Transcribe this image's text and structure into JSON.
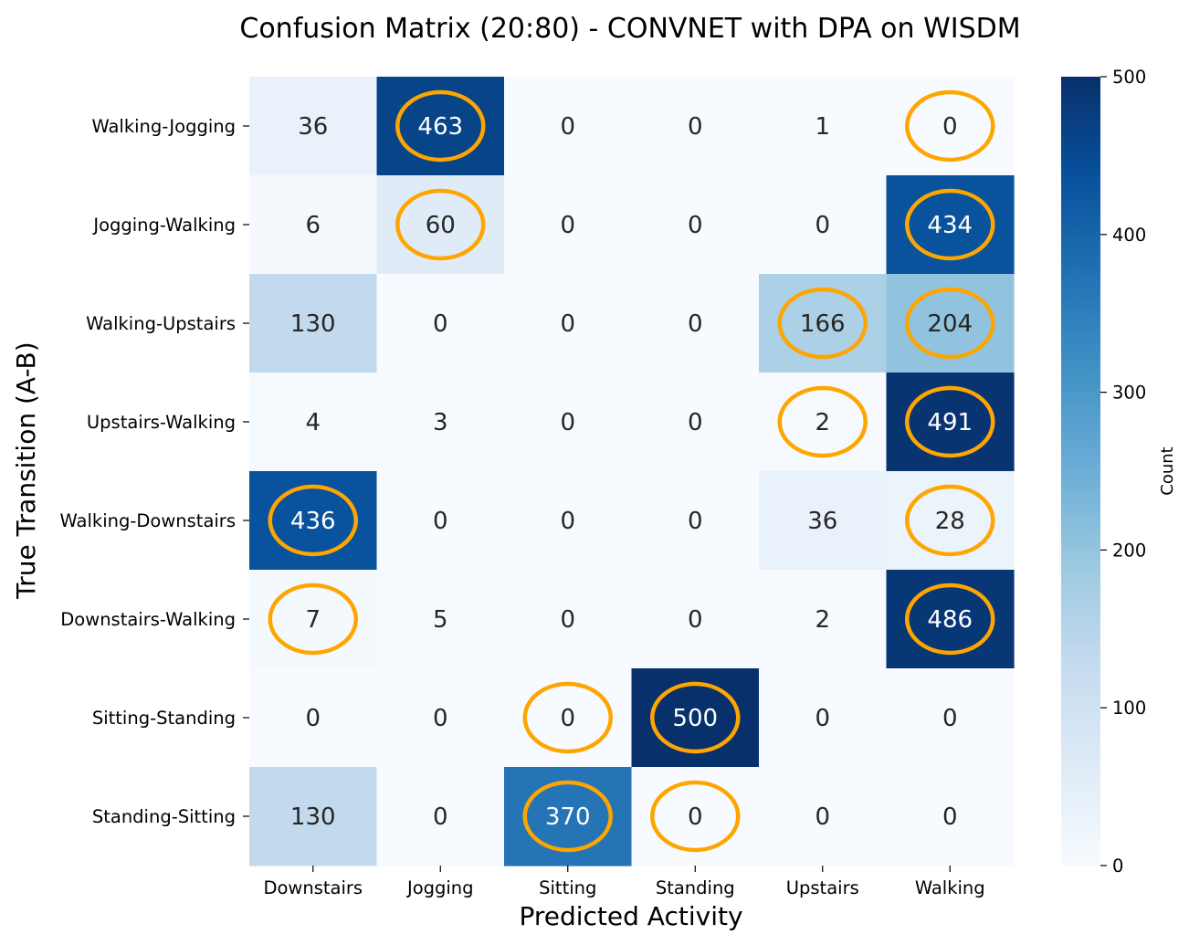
{
  "chart_data": {
    "type": "heatmap",
    "title": "Confusion Matrix (20:80) - CONVNET with DPA on WISDM",
    "xlabel": "Predicted Activity",
    "ylabel": "True Transition (A-B)",
    "x_categories": [
      "Downstairs",
      "Jogging",
      "Sitting",
      "Standing",
      "Upstairs",
      "Walking"
    ],
    "y_categories": [
      "Walking-Jogging",
      "Jogging-Walking",
      "Walking-Upstairs",
      "Upstairs-Walking",
      "Walking-Downstairs",
      "Downstairs-Walking",
      "Sitting-Standing",
      "Standing-Sitting"
    ],
    "values": [
      [
        36,
        463,
        0,
        0,
        1,
        0
      ],
      [
        6,
        60,
        0,
        0,
        0,
        434
      ],
      [
        130,
        0,
        0,
        0,
        166,
        204
      ],
      [
        4,
        3,
        0,
        0,
        2,
        491
      ],
      [
        436,
        0,
        0,
        0,
        36,
        28
      ],
      [
        7,
        5,
        0,
        0,
        2,
        486
      ],
      [
        0,
        0,
        0,
        500,
        0,
        0
      ],
      [
        130,
        0,
        370,
        0,
        0,
        0
      ]
    ],
    "highlighted_cells": [
      [
        0,
        1
      ],
      [
        0,
        5
      ],
      [
        1,
        1
      ],
      [
        1,
        5
      ],
      [
        2,
        4
      ],
      [
        2,
        5
      ],
      [
        3,
        4
      ],
      [
        3,
        5
      ],
      [
        4,
        0
      ],
      [
        4,
        5
      ],
      [
        5,
        0
      ],
      [
        5,
        5
      ],
      [
        6,
        2
      ],
      [
        6,
        3
      ],
      [
        7,
        2
      ],
      [
        7,
        3
      ]
    ],
    "highlight_color": "#FFA500",
    "colormap": "Blues",
    "vmin": 0,
    "vmax": 500,
    "colorbar": {
      "label": "Count",
      "ticks": [
        0,
        100,
        200,
        300,
        400,
        500
      ]
    },
    "grid": false
  }
}
